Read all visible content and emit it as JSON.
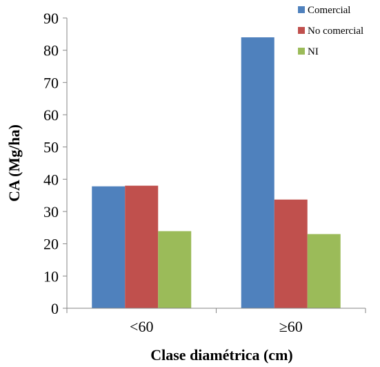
{
  "chart_data": {
    "type": "bar",
    "title": "",
    "xlabel": "Clase diamétrica (cm)",
    "ylabel": "CA (Mg/ha)",
    "categories": [
      "<60",
      "≥60"
    ],
    "series": [
      {
        "name": "Comercial",
        "values": [
          37.8,
          84.0
        ],
        "color": "#4F81BD"
      },
      {
        "name": "No comercial",
        "values": [
          38.0,
          33.7
        ],
        "color": "#C0504D"
      },
      {
        "name": "NI",
        "values": [
          23.9,
          23.0
        ],
        "color": "#9BBB59"
      }
    ],
    "ylim": [
      0,
      90
    ],
    "yticks": [
      0,
      10,
      20,
      30,
      40,
      50,
      60,
      70,
      80,
      90
    ],
    "grid": false,
    "legend_position": "top-right"
  }
}
